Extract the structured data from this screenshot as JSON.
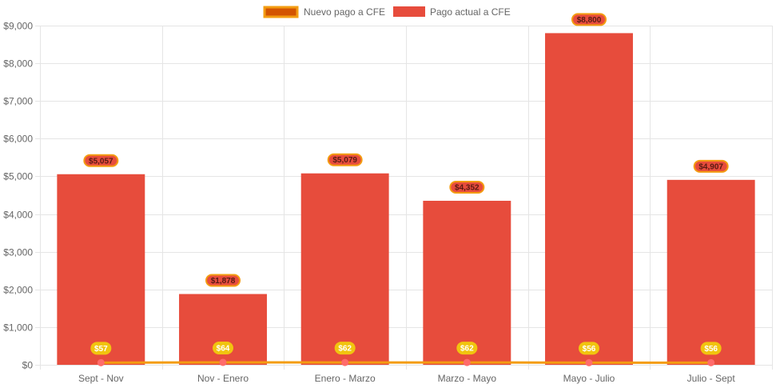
{
  "colors": {
    "bar_fill": "#e74c3c",
    "line_stroke": "#f39c12",
    "line_point": "#ff6b6b",
    "grid": "#e5e5e5",
    "bar_label_bg": "#e74c3c",
    "bar_label_border": "#f39c12",
    "bar_label_text": "#5a1a12",
    "line_label_bg": "#f1c40f",
    "line_label_text": "#ffffff",
    "legend_line_fill": "#d35400",
    "legend_line_border": "#f39c12"
  },
  "chart_data": {
    "type": "bar",
    "title": "",
    "xlabel": "",
    "ylabel": "",
    "ylim": [
      0,
      9000
    ],
    "y_ticks": [
      "$0",
      "$1,000",
      "$2,000",
      "$3,000",
      "$4,000",
      "$5,000",
      "$6,000",
      "$7,000",
      "$8,000",
      "$9,000"
    ],
    "y_tick_values": [
      0,
      1000,
      2000,
      3000,
      4000,
      5000,
      6000,
      7000,
      8000,
      9000
    ],
    "categories": [
      "Sept - Nov",
      "Nov - Enero",
      "Enero - Marzo",
      "Marzo - Mayo",
      "Mayo - Julio",
      "Julio - Sept"
    ],
    "legend_position": "top-center",
    "series": [
      {
        "name": "Nuevo pago a CFE",
        "kind": "line",
        "values": [
          57,
          64,
          62,
          62,
          56,
          56
        ],
        "labels": [
          "$57",
          "$64",
          "$62",
          "$62",
          "$56",
          "$56"
        ]
      },
      {
        "name": "Pago actual a CFE",
        "kind": "bar",
        "values": [
          5057,
          1878,
          5079,
          4352,
          8800,
          4907
        ],
        "labels": [
          "$5,057",
          "$1,878",
          "$5,079",
          "$4,352",
          "$8,800",
          "$4,907"
        ]
      }
    ]
  }
}
